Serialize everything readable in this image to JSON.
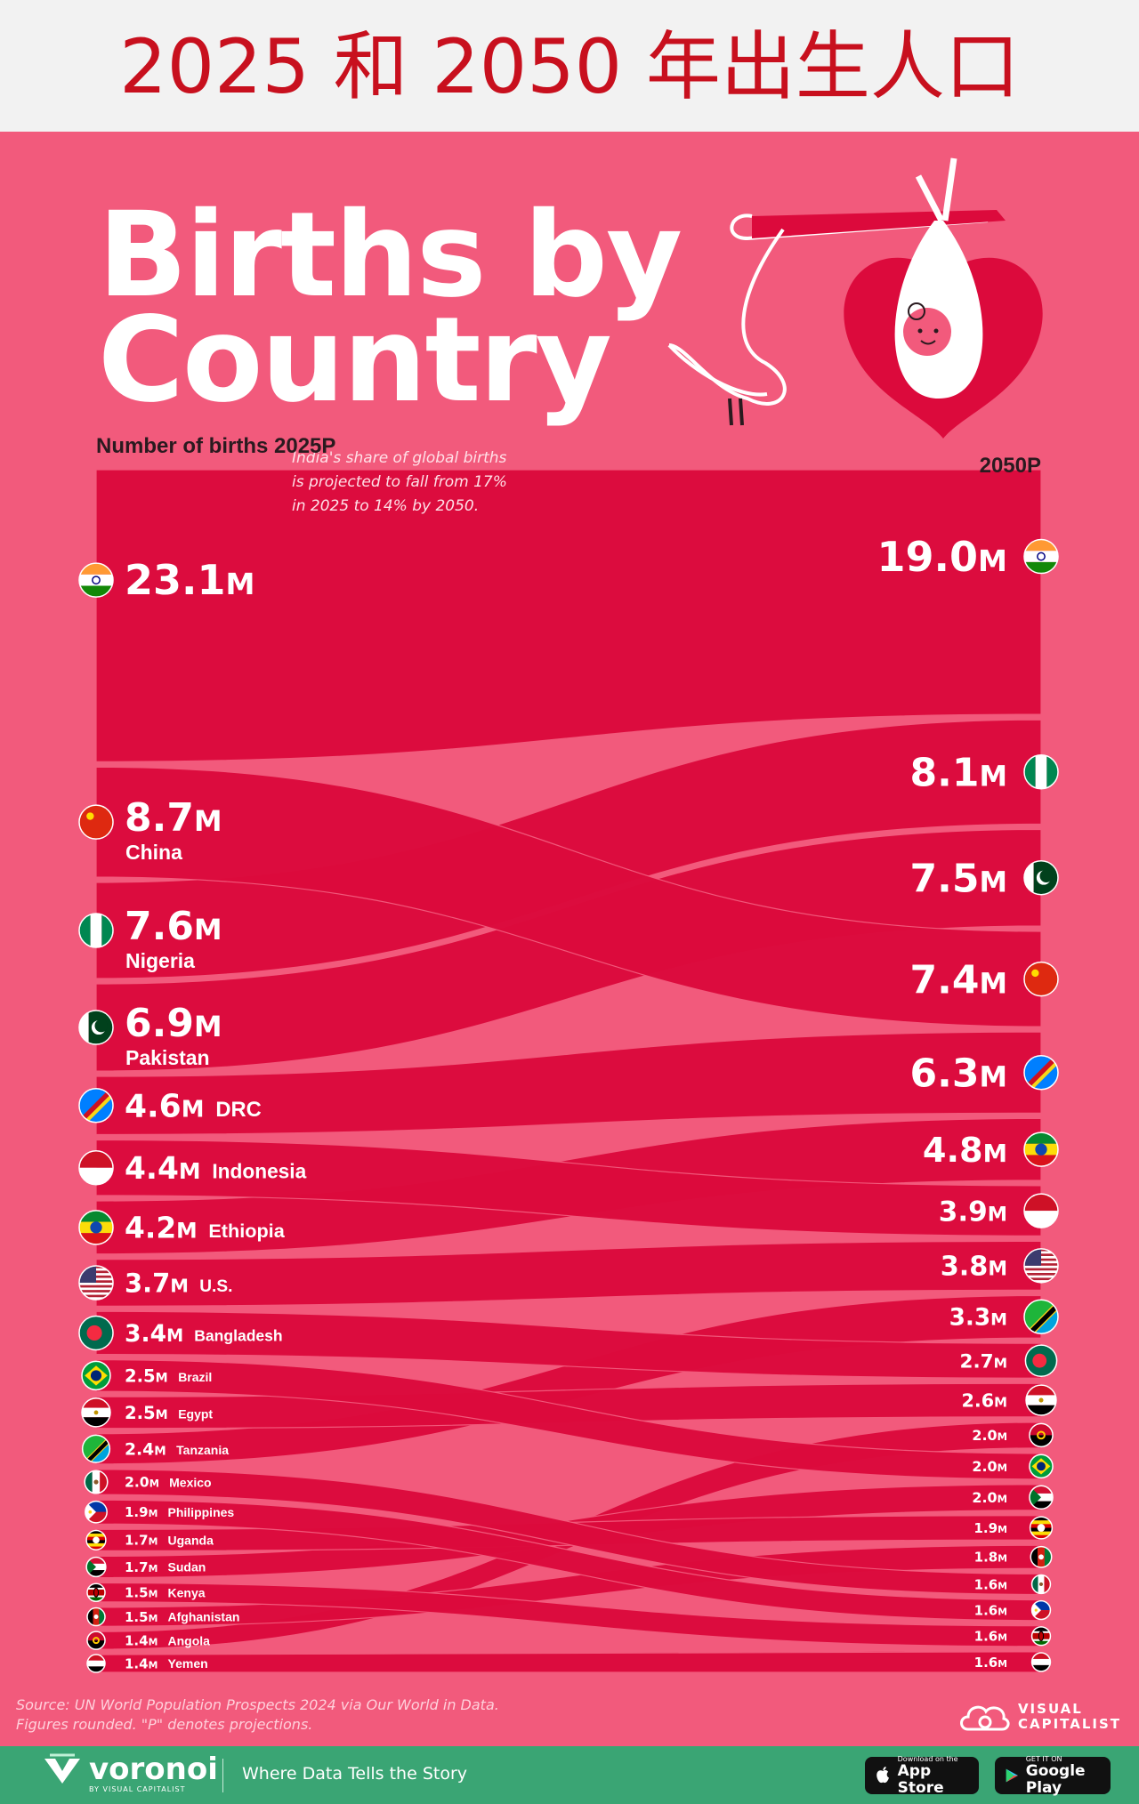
{
  "top_title": "2025 和 2050 年出生人口",
  "title_line1": "Births by",
  "title_line2": "Country",
  "label_left": "Number of births 2025P",
  "label_right": "2050P",
  "annotation": [
    "India's share of global births",
    "is projected to fall from 17%",
    "in 2025 to 14% by 2050."
  ],
  "footnote_line1": "Source: UN World Population Prospects 2024 via Our World in Data.",
  "footnote_line2": "Figures rounded. \"P\" denotes projections.",
  "vc_line1": "VISUAL",
  "vc_line2": "CAPITALIST",
  "brand": "voronoi",
  "brand_sub": "BY VISUAL CAPITALIST",
  "tagline": "Where Data Tells the Story",
  "app_store_small": "Download on the",
  "app_store_big": "App Store",
  "google_small": "GET IT ON",
  "google_big": "Google Play",
  "colors": {
    "background": "#f25a7c",
    "ribbon": "#dc0a3c",
    "text": "#ffffff",
    "title_red": "#c8101e",
    "footer": "#3aa574"
  },
  "chart_data": {
    "type": "bump-sankey",
    "unit": "M",
    "series": [
      {
        "name": "India",
        "label": "",
        "v2025": 23.1,
        "v2050": 19.0,
        "rank2025": 1,
        "rank2050": 1,
        "flag": "india"
      },
      {
        "name": "China",
        "label": "China",
        "v2025": 8.7,
        "v2050": 7.4,
        "rank2025": 2,
        "rank2050": 4,
        "flag": "china"
      },
      {
        "name": "Nigeria",
        "label": "Nigeria",
        "v2025": 7.6,
        "v2050": 8.1,
        "rank2025": 3,
        "rank2050": 2,
        "flag": "nigeria"
      },
      {
        "name": "Pakistan",
        "label": "Pakistan",
        "v2025": 6.9,
        "v2050": 7.5,
        "rank2025": 4,
        "rank2050": 3,
        "flag": "pakistan"
      },
      {
        "name": "DRC",
        "label": "DRC",
        "v2025": 4.6,
        "v2050": 6.3,
        "rank2025": 5,
        "rank2050": 5,
        "flag": "drc"
      },
      {
        "name": "Indonesia",
        "label": "Indonesia",
        "v2025": 4.4,
        "v2050": 3.9,
        "rank2025": 6,
        "rank2050": 7,
        "flag": "indonesia"
      },
      {
        "name": "Ethiopia",
        "label": "Ethiopia",
        "v2025": 4.2,
        "v2050": 4.8,
        "rank2025": 7,
        "rank2050": 6,
        "flag": "ethiopia"
      },
      {
        "name": "U.S.",
        "label": "U.S.",
        "v2025": 3.7,
        "v2050": 3.8,
        "rank2025": 8,
        "rank2050": 8,
        "flag": "us"
      },
      {
        "name": "Bangladesh",
        "label": "Bangladesh",
        "v2025": 3.4,
        "v2050": 2.7,
        "rank2025": 9,
        "rank2050": 10,
        "flag": "bangladesh"
      },
      {
        "name": "Brazil",
        "label": "Brazil",
        "v2025": 2.5,
        "v2050": 2.0,
        "rank2025": 10,
        "rank2050": 13,
        "flag": "brazil"
      },
      {
        "name": "Egypt",
        "label": "Egypt",
        "v2025": 2.5,
        "v2050": 2.6,
        "rank2025": 11,
        "rank2050": 11,
        "flag": "egypt"
      },
      {
        "name": "Tanzania",
        "label": "Tanzania",
        "v2025": 2.4,
        "v2050": 3.3,
        "rank2025": 12,
        "rank2050": 9,
        "flag": "tanzania"
      },
      {
        "name": "Mexico",
        "label": "Mexico",
        "v2025": 2.0,
        "v2050": 1.6,
        "rank2025": 13,
        "rank2050": 18,
        "flag": "mexico"
      },
      {
        "name": "Philippines",
        "label": "Philippines",
        "v2025": 1.9,
        "v2050": 1.6,
        "rank2025": 14,
        "rank2050": 19,
        "flag": "philippines"
      },
      {
        "name": "Uganda",
        "label": "Uganda",
        "v2025": 1.7,
        "v2050": 1.9,
        "rank2025": 15,
        "rank2050": 15,
        "flag": "uganda"
      },
      {
        "name": "Sudan",
        "label": "Sudan",
        "v2025": 1.7,
        "v2050": 2.0,
        "rank2025": 16,
        "rank2050": 14,
        "flag": "sudan"
      },
      {
        "name": "Kenya",
        "label": "Kenya",
        "v2025": 1.5,
        "v2050": 1.6,
        "rank2025": 17,
        "rank2050": 20,
        "flag": "kenya"
      },
      {
        "name": "Afghanistan",
        "label": "Afghanistan",
        "v2025": 1.5,
        "v2050": 1.8,
        "rank2025": 18,
        "rank2050": 16,
        "flag": "afghanistan"
      },
      {
        "name": "Angola",
        "label": "Angola",
        "v2025": 1.4,
        "v2050": 2.0,
        "rank2025": 19,
        "rank2050": 12,
        "flag": "angola"
      },
      {
        "name": "Yemen",
        "label": "Yemen",
        "v2025": 1.4,
        "v2050": 1.6,
        "rank2025": 20,
        "rank2050": 21,
        "flag": "yemen"
      }
    ],
    "right_rows": [
      {
        "value": "19.0",
        "flag": "india"
      },
      {
        "value": "8.1",
        "flag": "nigeria"
      },
      {
        "value": "7.5",
        "flag": "pakistan"
      },
      {
        "value": "7.4",
        "flag": "china"
      },
      {
        "value": "6.3",
        "flag": "drc"
      },
      {
        "value": "4.8",
        "flag": "ethiopia"
      },
      {
        "value": "3.9",
        "flag": "indonesia"
      },
      {
        "value": "3.8",
        "flag": "us"
      },
      {
        "value": "3.3",
        "flag": "tanzania"
      },
      {
        "value": "2.7",
        "flag": "bangladesh"
      },
      {
        "value": "2.6",
        "flag": "egypt"
      },
      {
        "value": "2.0",
        "flag": "angola"
      },
      {
        "value": "2.0",
        "flag": "brazil"
      },
      {
        "value": "2.0",
        "flag": "sudan"
      },
      {
        "value": "1.9",
        "flag": "uganda"
      },
      {
        "value": "1.8",
        "flag": "afghanistan"
      },
      {
        "value": "1.6",
        "flag": "mexico"
      },
      {
        "value": "1.6",
        "flag": "philippines"
      },
      {
        "value": "1.6",
        "flag": "kenya"
      },
      {
        "value": "1.6",
        "flag": "yemen"
      }
    ],
    "left_values": [
      "23.1",
      "8.7",
      "7.6",
      "6.9",
      "4.6",
      "4.4",
      "4.2",
      "3.7",
      "3.4",
      "2.5",
      "2.5",
      "2.4",
      "2.0",
      "1.9",
      "1.7",
      "1.7",
      "1.5",
      "1.5",
      "1.4",
      "1.4"
    ]
  }
}
